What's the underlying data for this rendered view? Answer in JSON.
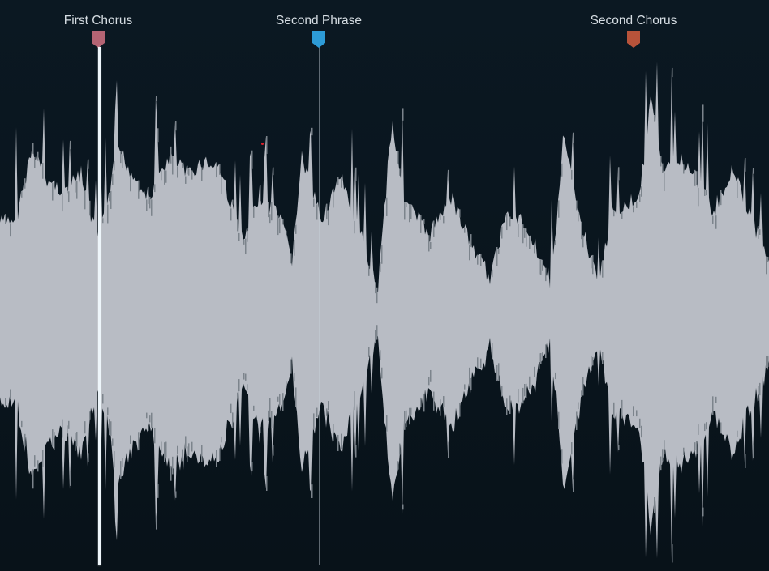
{
  "waveform": {
    "fill_color": "#b8bcc4",
    "shade_color": "#7c848c",
    "background_color": "#0a1520",
    "playhead_color": "#eef6fb",
    "playhead_marker_index": 0
  },
  "markers": [
    {
      "label": "First Chorus",
      "color": "#b46474"
    },
    {
      "label": "Second Phrase",
      "color": "#2d9bd7"
    },
    {
      "label": "Second Chorus",
      "color": "#b8533a"
    }
  ]
}
